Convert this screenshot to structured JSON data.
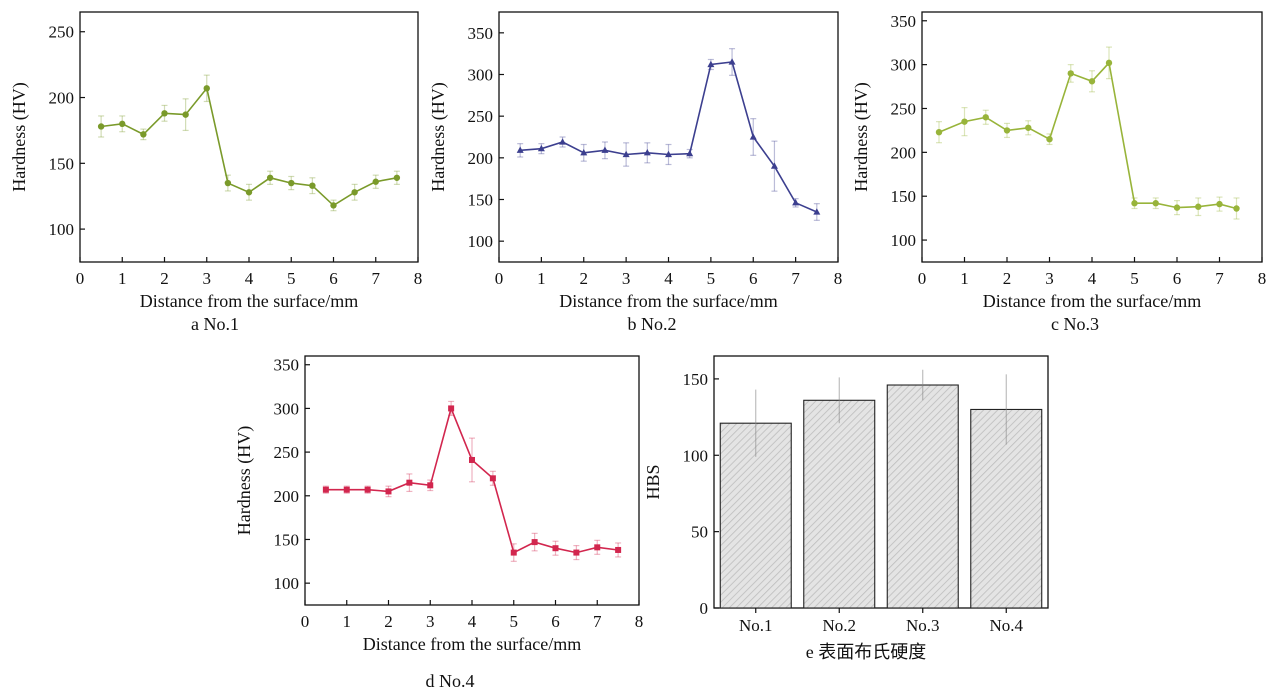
{
  "chart_data": [
    {
      "id": "a",
      "type": "line",
      "caption": "a  No.1",
      "xlabel": "Distance from the surface/mm",
      "ylabel": "Hardness (HV)",
      "xlim": [
        0,
        8
      ],
      "ylim": [
        75,
        265
      ],
      "xticks": [
        0,
        1,
        2,
        3,
        4,
        5,
        6,
        7,
        8
      ],
      "yticks": [
        100,
        150,
        200,
        250
      ],
      "color": "#7a9a2a",
      "marker": "circle",
      "x": [
        0.5,
        1,
        1.5,
        2,
        2.5,
        3,
        3.5,
        4,
        4.5,
        5,
        5.5,
        6,
        6.5,
        7,
        7.5
      ],
      "y": [
        178,
        180,
        172,
        188,
        187,
        207,
        135,
        128,
        139,
        135,
        133,
        118,
        128,
        136,
        139
      ],
      "err": [
        8,
        6,
        4,
        6,
        12,
        10,
        6,
        6,
        5,
        5,
        6,
        4,
        6,
        5,
        5
      ]
    },
    {
      "id": "b",
      "type": "line",
      "caption": "b  No.2",
      "xlabel": "Distance from the surface/mm",
      "ylabel": "Hardness (HV)",
      "xlim": [
        0,
        8
      ],
      "ylim": [
        75,
        375
      ],
      "xticks": [
        0,
        1,
        2,
        3,
        4,
        5,
        6,
        7,
        8
      ],
      "yticks": [
        100,
        150,
        200,
        250,
        300,
        350
      ],
      "color": "#3c3f8f",
      "marker": "triangle",
      "x": [
        0.5,
        1,
        1.5,
        2,
        2.5,
        3,
        3.5,
        4,
        4.5,
        5,
        5.5,
        6,
        6.5,
        7,
        7.5
      ],
      "y": [
        209,
        211,
        219,
        206,
        209,
        204,
        206,
        204,
        205,
        312,
        315,
        225,
        190,
        146,
        135
      ],
      "err": [
        8,
        6,
        6,
        10,
        10,
        14,
        12,
        12,
        5,
        6,
        16,
        22,
        30,
        5,
        10
      ]
    },
    {
      "id": "c",
      "type": "line",
      "caption": "c  No.3",
      "xlabel": "Distance from the surface/mm",
      "ylabel": "Hardness (HV)",
      "xlim": [
        0,
        8
      ],
      "ylim": [
        75,
        360
      ],
      "xticks": [
        0,
        1,
        2,
        3,
        4,
        5,
        6,
        7,
        8
      ],
      "yticks": [
        100,
        150,
        200,
        250,
        300,
        350
      ],
      "color": "#98b43a",
      "marker": "circle",
      "x": [
        0.4,
        1,
        1.5,
        2,
        2.5,
        3,
        3.5,
        4,
        4.4,
        5,
        5.5,
        6,
        6.5,
        7,
        7.4
      ],
      "y": [
        223,
        235,
        240,
        225,
        228,
        215,
        290,
        281,
        302,
        142,
        142,
        137,
        138,
        141,
        136
      ],
      "err": [
        12,
        16,
        8,
        8,
        8,
        6,
        10,
        12,
        18,
        6,
        6,
        8,
        10,
        8,
        12
      ]
    },
    {
      "id": "d",
      "type": "line",
      "caption": "d  No.4",
      "xlabel": "Distance from the surface/mm",
      "ylabel": "Hardness (HV)",
      "xlim": [
        0,
        8
      ],
      "ylim": [
        75,
        360
      ],
      "xticks": [
        0,
        1,
        2,
        3,
        4,
        5,
        6,
        7,
        8
      ],
      "yticks": [
        100,
        150,
        200,
        250,
        300,
        350
      ],
      "color": "#d2264e",
      "marker": "square",
      "x": [
        0.5,
        1,
        1.5,
        2,
        2.5,
        3,
        3.5,
        4,
        4.5,
        5,
        5.5,
        6,
        6.5,
        7,
        7.5
      ],
      "y": [
        207,
        207,
        207,
        205,
        215,
        212,
        300,
        241,
        220,
        135,
        147,
        140,
        135,
        141,
        138
      ],
      "err": [
        4,
        4,
        4,
        6,
        10,
        6,
        8,
        25,
        8,
        10,
        10,
        8,
        8,
        8,
        8
      ]
    },
    {
      "id": "e",
      "type": "bar",
      "caption": "e  表面布氏硬度",
      "xlabel": "",
      "ylabel": "HBS",
      "ylim": [
        0,
        165
      ],
      "yticks": [
        0,
        50,
        100,
        150
      ],
      "categories": [
        "No.1",
        "No.2",
        "No.3",
        "No.4"
      ],
      "values": [
        121,
        136,
        146,
        130
      ],
      "err": [
        22,
        15,
        10,
        23
      ]
    }
  ]
}
